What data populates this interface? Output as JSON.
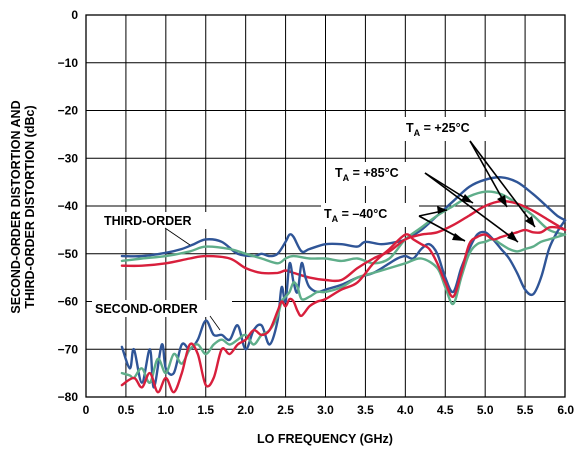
{
  "chart_data": {
    "type": "line",
    "title": "",
    "xlabel": "LO FREQUENCY (GHz)",
    "ylabel_lines": [
      "SECOND-ORDER DISTORTION AND",
      "THIRD-ORDER DISTORTION (dBc)"
    ],
    "xlim": [
      0,
      6
    ],
    "ylim": [
      -80,
      0
    ],
    "xticks": [
      "0",
      "0.5",
      "1.0",
      "1.5",
      "2.0",
      "2.5",
      "3.0",
      "3.5",
      "4.0",
      "4.5",
      "5.0",
      "5.5",
      "6.0"
    ],
    "yticks": [
      "0",
      "−10",
      "−20",
      "−30",
      "−40",
      "−50",
      "−60",
      "−70",
      "−80"
    ],
    "grid": true,
    "colors": {
      "blue": "#2f5597",
      "green": "#5fae8a",
      "red": "#d81f3c"
    },
    "annotations": {
      "third_order": "THIRD-ORDER",
      "second_order": "SECOND-ORDER",
      "t25": {
        "main": "T",
        "sub": "A",
        "value": " = +25°C"
      },
      "t85": {
        "main": "T",
        "sub": "A",
        "value": " = +85°C"
      },
      "tm40": {
        "main": "T",
        "sub": "A",
        "value": " = –40°C"
      }
    },
    "series": [
      {
        "group": "third-order",
        "condition": "+25°C",
        "color": "blue",
        "x": [
          0.45,
          0.7,
          1.0,
          1.2,
          1.35,
          1.5,
          1.7,
          1.9,
          2.1,
          2.2,
          2.3,
          2.4,
          2.5,
          2.55,
          2.6,
          2.7,
          2.8,
          3.0,
          3.2,
          3.4,
          3.5,
          3.7,
          3.9,
          4.0,
          4.2,
          4.4,
          4.6,
          4.8,
          5.0,
          5.2,
          5.4,
          5.6,
          5.8,
          5.9,
          6.0
        ],
        "y": [
          -50.5,
          -50.5,
          -49.8,
          -49,
          -48,
          -47,
          -47.5,
          -50,
          -50.5,
          -50,
          -50.5,
          -50,
          -47.5,
          -46,
          -46.5,
          -49.5,
          -49,
          -48,
          -48,
          -48.5,
          -47.5,
          -48,
          -47.5,
          -47,
          -45,
          -42,
          -39,
          -36,
          -34.5,
          -34,
          -35,
          -37.5,
          -40.5,
          -42,
          -43
        ]
      },
      {
        "group": "third-order",
        "condition": "+85°C",
        "color": "green",
        "x": [
          0.45,
          0.7,
          1.0,
          1.3,
          1.5,
          1.8,
          2.0,
          2.2,
          2.4,
          2.5,
          2.6,
          2.8,
          3.0,
          3.2,
          3.4,
          3.6,
          3.8,
          4.0,
          4.2,
          4.4,
          4.6,
          4.8,
          5.0,
          5.2,
          5.4,
          5.6,
          5.8,
          6.0
        ],
        "y": [
          -51.5,
          -51,
          -50.5,
          -49.5,
          -48.5,
          -49,
          -50,
          -51,
          -52,
          -51,
          -50.5,
          -51,
          -51,
          -51.5,
          -51,
          -52,
          -51,
          -47,
          -44.5,
          -42,
          -40,
          -38,
          -37,
          -37.5,
          -39.5,
          -42,
          -45,
          -46
        ]
      },
      {
        "group": "third-order",
        "condition": "−40°C",
        "color": "red",
        "x": [
          0.45,
          0.7,
          1.0,
          1.3,
          1.5,
          1.8,
          2.0,
          2.2,
          2.4,
          2.5,
          2.6,
          2.8,
          3.0,
          3.2,
          3.4,
          3.6,
          3.8,
          4.0,
          4.2,
          4.4,
          4.6,
          4.8,
          5.0,
          5.2,
          5.4,
          5.6,
          5.8,
          6.0
        ],
        "y": [
          -52.5,
          -52.5,
          -52,
          -51,
          -50.5,
          -51,
          -53,
          -54,
          -54,
          -53.5,
          -54,
          -55,
          -55.5,
          -55.5,
          -53,
          -51,
          -49.5,
          -47,
          -46,
          -45.5,
          -44,
          -42,
          -40,
          -39,
          -39.5,
          -41,
          -43,
          -45
        ]
      },
      {
        "group": "second-order",
        "condition": "+25°C",
        "color": "blue",
        "x": [
          0.45,
          0.55,
          0.6,
          0.7,
          0.8,
          0.85,
          0.95,
          1.0,
          1.1,
          1.2,
          1.3,
          1.4,
          1.5,
          1.6,
          1.7,
          1.8,
          1.9,
          2.0,
          2.1,
          2.2,
          2.3,
          2.4,
          2.45,
          2.5,
          2.55,
          2.6,
          2.65,
          2.7,
          2.75,
          2.8,
          2.9,
          3.0,
          3.2,
          3.4,
          3.6,
          3.8,
          3.9,
          4.0,
          4.1,
          4.2,
          4.3,
          4.4,
          4.5,
          4.6,
          4.7,
          4.8,
          4.9,
          5.0,
          5.1,
          5.2,
          5.3,
          5.4,
          5.5,
          5.6,
          5.7,
          5.8,
          5.9,
          6.0
        ],
        "y": [
          -69.5,
          -74,
          -70,
          -77,
          -70,
          -78,
          -69,
          -74,
          -75,
          -69,
          -70,
          -68,
          -64,
          -67,
          -67,
          -68,
          -65,
          -70,
          -66,
          -65,
          -69,
          -64,
          -57,
          -60,
          -52,
          -56,
          -58,
          -52,
          -55,
          -57,
          -58,
          -57.5,
          -56.5,
          -55,
          -54,
          -52,
          -51,
          -50.5,
          -51,
          -49,
          -48,
          -50,
          -55,
          -58,
          -53,
          -49,
          -46,
          -45.5,
          -47,
          -49,
          -51,
          -54,
          -57.5,
          -58.5,
          -55,
          -49,
          -45.5,
          -43
        ]
      },
      {
        "group": "second-order",
        "condition": "+85°C",
        "color": "green",
        "x": [
          0.45,
          0.55,
          0.6,
          0.7,
          0.8,
          0.9,
          1.0,
          1.1,
          1.2,
          1.3,
          1.4,
          1.5,
          1.6,
          1.7,
          1.8,
          1.9,
          2.0,
          2.1,
          2.2,
          2.3,
          2.4,
          2.45,
          2.5,
          2.55,
          2.6,
          2.65,
          2.7,
          2.8,
          2.9,
          3.0,
          3.2,
          3.4,
          3.6,
          3.8,
          4.0,
          4.2,
          4.4,
          4.5,
          4.6,
          4.7,
          4.8,
          4.9,
          5.0,
          5.1,
          5.2,
          5.3,
          5.4,
          5.5,
          5.6,
          5.7,
          5.8,
          5.9,
          6.0
        ],
        "y": [
          -75,
          -75.5,
          -76,
          -74,
          -77,
          -72,
          -75,
          -71,
          -73,
          -70,
          -69,
          -71,
          -69,
          -68,
          -69,
          -68,
          -67,
          -69,
          -67,
          -66,
          -63,
          -60,
          -59,
          -58,
          -56,
          -57,
          -59.5,
          -59,
          -58,
          -58,
          -57,
          -55,
          -54,
          -53,
          -52,
          -51,
          -53,
          -57,
          -60.5,
          -55,
          -50,
          -48,
          -47.5,
          -47,
          -48,
          -49,
          -49.5,
          -49,
          -48.5,
          -47.5,
          -47,
          -46.5,
          -46
        ]
      },
      {
        "group": "second-order",
        "condition": "−40°C",
        "color": "red",
        "x": [
          0.45,
          0.6,
          0.7,
          0.8,
          0.9,
          1.0,
          1.1,
          1.2,
          1.3,
          1.4,
          1.5,
          1.6,
          1.7,
          1.8,
          1.9,
          2.0,
          2.1,
          2.2,
          2.3,
          2.4,
          2.45,
          2.5,
          2.55,
          2.6,
          2.65,
          2.7,
          2.8,
          2.9,
          3.0,
          3.2,
          3.4,
          3.6,
          3.8,
          4.0,
          4.1,
          4.2,
          4.3,
          4.4,
          4.5,
          4.6,
          4.7,
          4.8,
          4.9,
          5.0,
          5.1,
          5.2,
          5.3,
          5.4,
          5.5,
          5.6,
          5.7,
          5.8,
          5.9,
          6.0
        ],
        "y": [
          -77.5,
          -76,
          -78,
          -75,
          -79,
          -76,
          -79,
          -75,
          -69,
          -71,
          -77.5,
          -76,
          -70,
          -71,
          -69,
          -68,
          -66,
          -67,
          -66,
          -62,
          -60,
          -61,
          -59.5,
          -60,
          -62,
          -63,
          -61,
          -60,
          -59.5,
          -57.5,
          -56,
          -52,
          -49,
          -46,
          -47,
          -48,
          -49,
          -52,
          -56,
          -59,
          -54,
          -48,
          -46.5,
          -46,
          -47,
          -46.5,
          -46,
          -45.5,
          -45,
          -45.5,
          -45.5,
          -44.5,
          -44.5,
          -45
        ]
      }
    ]
  }
}
